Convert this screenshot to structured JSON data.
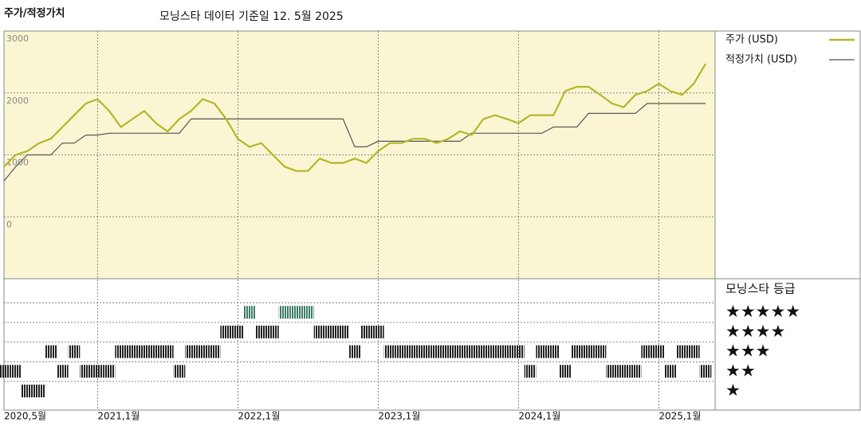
{
  "chart_data": {
    "type": "line",
    "title": "주가/적정가치",
    "subtitle": "모닝스타 데이터 기준일 12. 5월 2025",
    "categories": [
      "2020,5월",
      null,
      null,
      null,
      null,
      null,
      null,
      null,
      "2021,1월",
      null,
      null,
      null,
      null,
      null,
      null,
      null,
      null,
      null,
      null,
      null,
      "2022,1월",
      null,
      null,
      null,
      null,
      null,
      null,
      null,
      null,
      null,
      null,
      null,
      "2023,1월",
      null,
      null,
      null,
      null,
      null,
      null,
      null,
      null,
      null,
      null,
      null,
      "2024,1월",
      null,
      null,
      null,
      null,
      null,
      null,
      null,
      null,
      null,
      null,
      null,
      "2025,1월",
      null,
      null,
      null,
      null
    ],
    "series": [
      {
        "name": "주가 (USD)",
        "color": "#b3b62a",
        "values": [
          810,
          1000,
          1060,
          1190,
          1260,
          1450,
          1640,
          1830,
          1900,
          1710,
          1450,
          1580,
          1710,
          1510,
          1380,
          1580,
          1710,
          1900,
          1830,
          1580,
          1260,
          1130,
          1190,
          1000,
          810,
          740,
          740,
          940,
          870,
          870,
          940,
          870,
          1060,
          1190,
          1190,
          1260,
          1260,
          1190,
          1260,
          1380,
          1320,
          1580,
          1640,
          1580,
          1510,
          1640,
          1640,
          1640,
          2030,
          2100,
          2100,
          1970,
          1830,
          1770,
          1970,
          2030,
          2150,
          2030,
          1970,
          2150,
          2470
        ]
      },
      {
        "name": "적정가치 (USD)",
        "color": "#555555",
        "values": [
          580,
          810,
          1000,
          1000,
          1000,
          1190,
          1190,
          1320,
          1320,
          1350,
          1350,
          1350,
          1350,
          1350,
          1350,
          1350,
          1580,
          1580,
          1580,
          1580,
          1580,
          1580,
          1580,
          1580,
          1580,
          1580,
          1580,
          1580,
          1580,
          1580,
          1130,
          1130,
          1220,
          1220,
          1220,
          1220,
          1220,
          1220,
          1220,
          1220,
          1350,
          1350,
          1350,
          1350,
          1350,
          1350,
          1350,
          1450,
          1450,
          1450,
          1670,
          1670,
          1670,
          1670,
          1670,
          1830,
          1830,
          1830,
          1830,
          1830,
          1830
        ]
      }
    ],
    "ylim": [
      -1000,
      3000
    ],
    "yticks": [
      0,
      1000,
      2000,
      3000
    ],
    "grid": true,
    "background": "#faf6d3",
    "rating_title": "모닝스타 등급",
    "rating_ticks": [
      {
        "value": 5,
        "label": "★★★★★"
      },
      {
        "value": 4,
        "label": "★★★★"
      },
      {
        "value": 3,
        "label": "★★★"
      },
      {
        "value": 2,
        "label": "★★"
      },
      {
        "value": 1,
        "label": "★"
      }
    ],
    "rating_color": "#222222",
    "top_rating_color": "#3d7c63",
    "rating": [
      2,
      2,
      1,
      1,
      3,
      2,
      3,
      2,
      2,
      2,
      3,
      3,
      3,
      3,
      3,
      2,
      3,
      3,
      3,
      4,
      4,
      5,
      4,
      4,
      5,
      5,
      5,
      4,
      4,
      4,
      3,
      4,
      4,
      3,
      3,
      3,
      3,
      3,
      3,
      3,
      3,
      3,
      3,
      3,
      3,
      2,
      3,
      3,
      2,
      3,
      3,
      3,
      2,
      2,
      2,
      3,
      3,
      2,
      3,
      3,
      2
    ]
  }
}
